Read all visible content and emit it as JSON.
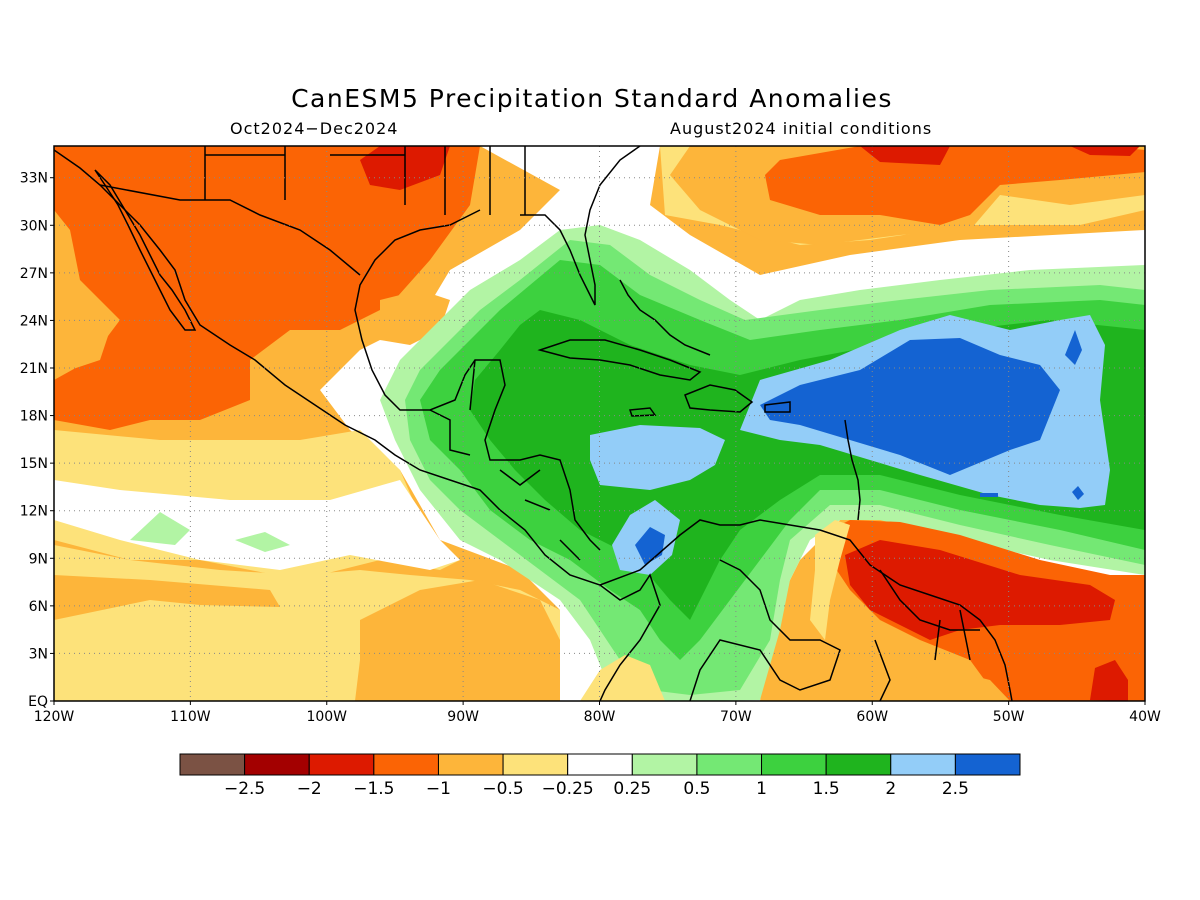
{
  "header": {
    "title": "CanESM5 Precipitation Standard Anomalies",
    "period": "Oct2024−Dec2024",
    "initial_conditions": "August2024 initial conditions"
  },
  "map": {
    "lon_range": [
      -120,
      -40
    ],
    "lat_range": [
      0,
      35
    ],
    "lat_labels": [
      {
        "v": 33,
        "t": "33N"
      },
      {
        "v": 30,
        "t": "30N"
      },
      {
        "v": 27,
        "t": "27N"
      },
      {
        "v": 24,
        "t": "24N"
      },
      {
        "v": 21,
        "t": "21N"
      },
      {
        "v": 18,
        "t": "18N"
      },
      {
        "v": 15,
        "t": "15N"
      },
      {
        "v": 12,
        "t": "12N"
      },
      {
        "v": 9,
        "t": "9N"
      },
      {
        "v": 6,
        "t": "6N"
      },
      {
        "v": 3,
        "t": "3N"
      },
      {
        "v": 0,
        "t": "EQ"
      }
    ],
    "lon_labels": [
      {
        "v": -120,
        "t": "120W"
      },
      {
        "v": -110,
        "t": "110W"
      },
      {
        "v": -100,
        "t": "100W"
      },
      {
        "v": -90,
        "t": "90W"
      },
      {
        "v": -80,
        "t": "80W"
      },
      {
        "v": -70,
        "t": "70W"
      },
      {
        "v": -60,
        "t": "60W"
      },
      {
        "v": -50,
        "t": "50W"
      },
      {
        "v": -40,
        "t": "40W"
      }
    ],
    "grid": true
  },
  "colorbar": {
    "colors": [
      "#7b5244",
      "#a30000",
      "#dd1a00",
      "#fb6405",
      "#fdb53a",
      "#fde27a",
      "#ffffff",
      "#b2f4a4",
      "#74e874",
      "#3dd13f",
      "#1fb41e",
      "#93cdf8",
      "#1463d2"
    ],
    "labels": [
      "−2.5",
      "−2",
      "−1.5",
      "−1",
      "−0.5",
      "−0.25",
      "0.25",
      "0.5",
      "1",
      "1.5",
      "2",
      "2.5"
    ]
  }
}
